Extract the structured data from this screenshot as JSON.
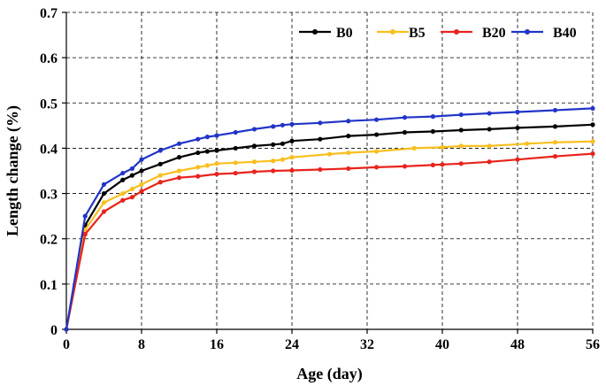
{
  "chart_data": {
    "type": "line",
    "title": "",
    "xlabel": "Age (day)",
    "ylabel": "Length change  (%)",
    "xlim": [
      0,
      56
    ],
    "ylim": [
      0,
      0.7
    ],
    "x_ticks": [
      "0",
      "8",
      "16",
      "24",
      "32",
      "40",
      "48",
      "56"
    ],
    "x_tick_values": [
      0,
      8,
      16,
      24,
      32,
      40,
      48,
      56
    ],
    "y_ticks": [
      "0",
      "0.1",
      "0.2",
      "0.3",
      "0.4",
      "0.5",
      "0.6",
      "0.7"
    ],
    "y_tick_values": [
      0,
      0.1,
      0.2,
      0.3,
      0.4,
      0.5,
      0.6,
      0.7
    ],
    "grid": true,
    "legend_position": "top-right",
    "series": [
      {
        "name": "B0",
        "color": "#000000",
        "x": [
          0,
          2,
          4,
          6,
          7,
          8,
          10,
          12,
          14,
          15,
          16,
          18,
          20,
          22,
          23,
          24,
          27,
          30,
          33,
          36,
          39,
          42,
          45,
          48,
          52,
          56
        ],
        "y": [
          0,
          0.23,
          0.3,
          0.33,
          0.34,
          0.35,
          0.365,
          0.38,
          0.39,
          0.393,
          0.395,
          0.4,
          0.405,
          0.408,
          0.41,
          0.416,
          0.42,
          0.427,
          0.43,
          0.435,
          0.437,
          0.44,
          0.442,
          0.445,
          0.448,
          0.452
        ]
      },
      {
        "name": "B5",
        "color": "#f8bf1f",
        "x": [
          0,
          2,
          4,
          6,
          7,
          8,
          10,
          12,
          14,
          15,
          16,
          18,
          20,
          22,
          23,
          24,
          28,
          30,
          33,
          37,
          40,
          42,
          45,
          49,
          52,
          56
        ],
        "y": [
          0,
          0.22,
          0.28,
          0.3,
          0.31,
          0.32,
          0.34,
          0.35,
          0.358,
          0.362,
          0.366,
          0.368,
          0.37,
          0.372,
          0.375,
          0.38,
          0.387,
          0.39,
          0.393,
          0.4,
          0.402,
          0.405,
          0.405,
          0.41,
          0.413,
          0.415
        ]
      },
      {
        "name": "B20",
        "color": "#e8231c",
        "x": [
          0,
          2,
          4,
          6,
          7,
          8,
          10,
          12,
          14,
          16,
          18,
          20,
          22,
          24,
          27,
          30,
          33,
          36,
          39,
          40,
          42,
          45,
          48,
          52,
          56
        ],
        "y": [
          0,
          0.21,
          0.26,
          0.285,
          0.292,
          0.305,
          0.325,
          0.335,
          0.338,
          0.343,
          0.345,
          0.348,
          0.35,
          0.351,
          0.353,
          0.355,
          0.358,
          0.36,
          0.363,
          0.364,
          0.366,
          0.37,
          0.375,
          0.382,
          0.388
        ]
      },
      {
        "name": "B40",
        "color": "#2235c8",
        "x": [
          0,
          2,
          4,
          6,
          7,
          8,
          10,
          12,
          14,
          15,
          16,
          18,
          20,
          22,
          23,
          24,
          27,
          30,
          33,
          36,
          39,
          42,
          45,
          48,
          52,
          56
        ],
        "y": [
          0,
          0.25,
          0.32,
          0.345,
          0.355,
          0.375,
          0.395,
          0.41,
          0.42,
          0.425,
          0.428,
          0.435,
          0.442,
          0.448,
          0.451,
          0.453,
          0.456,
          0.46,
          0.463,
          0.468,
          0.47,
          0.474,
          0.477,
          0.48,
          0.484,
          0.488
        ]
      }
    ]
  }
}
